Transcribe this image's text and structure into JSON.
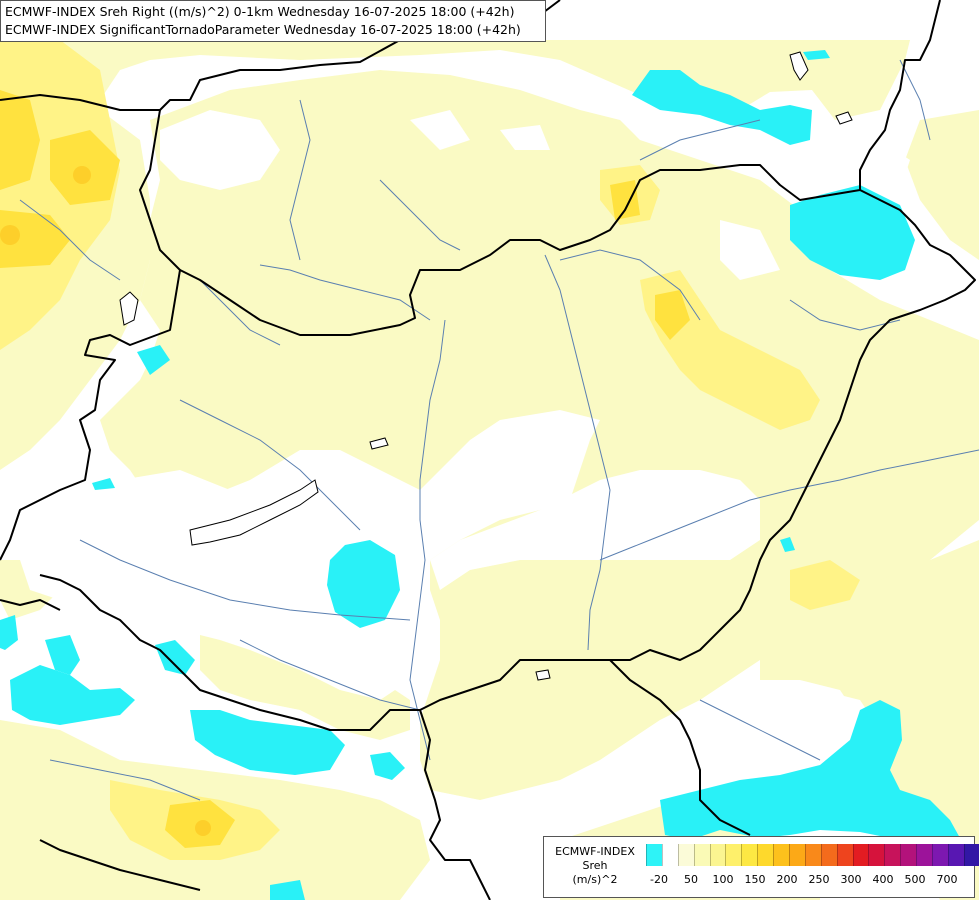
{
  "title": {
    "line1": "ECMWF-INDEX Sreh Right ((m/s)^2) 0-1km Wednesday 16-07-2025 18:00 (+42h)",
    "line2": "ECMWF-INDEX SignificantTornadoParameter Wednesday 16-07-2025 18:00 (+42h)"
  },
  "colors": {
    "background": "#ffffff",
    "light_yellow": "#fafac4",
    "yellow": "#fff387",
    "yellow_strong": "#ffe23f",
    "orange_core": "#fdcf2a",
    "cyan": "#29f1f7",
    "border": "#000000",
    "river": "#5a7fb0"
  },
  "legend": {
    "title_line1": "ECMWF-INDEX",
    "title_line2": "Sreh",
    "title_line3": "(m/s)^2",
    "colors": [
      "#2ef3f7",
      "#ffffff",
      "#fbfbd8",
      "#fafab6",
      "#fbf591",
      "#fef06b",
      "#fde843",
      "#fed92c",
      "#fdc11c",
      "#fca917",
      "#f9891a",
      "#f46b1c",
      "#ee441e",
      "#e31c22",
      "#d6133c",
      "#c7135b",
      "#b3127b",
      "#9c139a",
      "#7d18b0",
      "#5817b2",
      "#3217a5",
      "#141d8f"
    ],
    "ticks": [
      "-20",
      "50",
      "100",
      "150",
      "200",
      "250",
      "300",
      "400",
      "500",
      "700"
    ]
  }
}
